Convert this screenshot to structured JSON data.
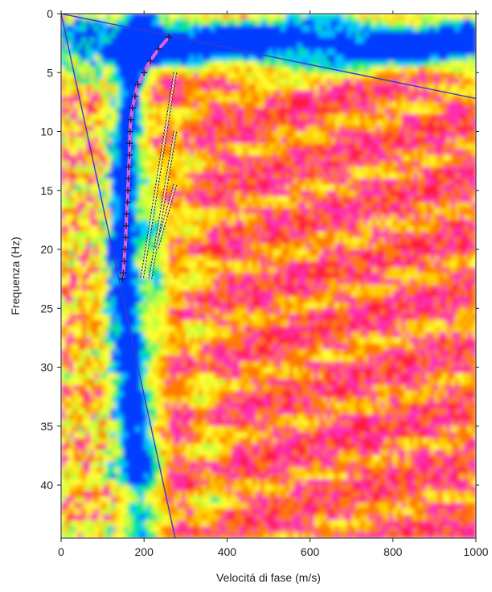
{
  "chart_data": {
    "type": "heatmap",
    "title": "",
    "xlabel": "Velocitá di fase (m/s)",
    "ylabel": "Frequenza (Hz)",
    "xlim": [
      0,
      1000
    ],
    "ylim": [
      0,
      44.5
    ],
    "y_inverted": true,
    "x_ticks": [
      0,
      200,
      400,
      600,
      800,
      1000
    ],
    "y_ticks": [
      0,
      5,
      10,
      15,
      20,
      25,
      30,
      35,
      40
    ],
    "grid": false,
    "legend": "none",
    "colormap": [
      "#ff1f3c",
      "#ff2fb0",
      "#ff7a00",
      "#ffd000",
      "#ffff33",
      "#b8ff3a",
      "#00e68a",
      "#00c8ff",
      "#003cff"
    ],
    "lines": [
      {
        "points": [
          [
            0,
            0
          ],
          [
            1000,
            7.2
          ]
        ],
        "color": "#3a3ad0"
      },
      {
        "points": [
          [
            0,
            0
          ],
          [
            275,
            44.5
          ]
        ],
        "color": "#3a3ad0"
      }
    ],
    "picked_curve": {
      "color": "#e060e0",
      "marker_color": "#1a1a60",
      "points": [
        [
          260,
          2
        ],
        [
          235,
          3
        ],
        [
          215,
          4
        ],
        [
          200,
          5
        ],
        [
          185,
          6
        ],
        [
          178,
          7
        ],
        [
          172,
          8
        ],
        [
          168,
          9
        ],
        [
          166,
          10
        ],
        [
          165,
          11
        ],
        [
          165,
          12
        ],
        [
          163,
          13
        ],
        [
          162,
          14
        ],
        [
          161,
          15
        ],
        [
          160,
          16
        ],
        [
          158,
          17
        ],
        [
          157,
          18
        ],
        [
          156,
          19
        ],
        [
          154,
          20
        ],
        [
          152,
          21
        ],
        [
          150,
          22
        ],
        [
          148,
          22.5
        ]
      ]
    },
    "higher_modes": [
      {
        "points": [
          [
            275,
            5
          ],
          [
            195,
            22.5
          ]
        ],
        "color": "#ffffff",
        "style": "dotted"
      },
      {
        "points": [
          [
            275,
            10
          ],
          [
            215,
            22.5
          ]
        ],
        "color": "#ffffff",
        "style": "dotted"
      },
      {
        "points": [
          [
            275,
            14.5
          ],
          [
            230,
            20
          ]
        ],
        "color": "#ffffff",
        "style": "dotted"
      }
    ]
  }
}
